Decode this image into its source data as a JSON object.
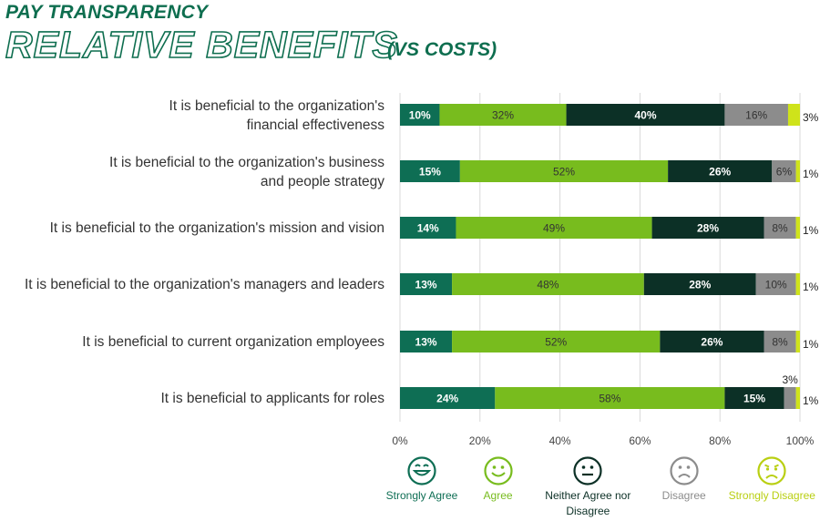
{
  "header": {
    "title_line1": "PAY TRANSPARENCY",
    "title_line2": "RELATIVE BENEFITS",
    "title_suffix": "(VS COSTS)"
  },
  "chart_data": {
    "type": "bar",
    "orientation": "horizontal",
    "stacked": true,
    "xlim": [
      0,
      100
    ],
    "x_ticks": [
      "0%",
      "20%",
      "40%",
      "60%",
      "80%",
      "100%"
    ],
    "grid": true,
    "legend_position": "bottom",
    "categories": [
      "It is beneficial to the organization's financial effectiveness",
      "It is beneficial to the organization's business and people strategy",
      "It is beneficial to the organization's mission and vision",
      "It is beneficial to the organization's managers and leaders",
      "It is beneficial to current organization employees",
      "It is beneficial to applicants for roles"
    ],
    "series": [
      {
        "name": "Strongly Agree",
        "color": "#0e6e54",
        "label_color": "#ffffff",
        "icon": "big-smile-face-icon",
        "values": [
          10,
          15,
          14,
          13,
          13,
          24
        ]
      },
      {
        "name": "Agree",
        "color": "#78bc1e",
        "label_color": "#333333",
        "icon": "smile-face-icon",
        "values": [
          32,
          52,
          49,
          48,
          52,
          58
        ]
      },
      {
        "name": "Neither Agree nor Disagree",
        "color": "#0c3026",
        "label_color": "#ffffff",
        "icon": "neutral-face-icon",
        "values": [
          40,
          26,
          28,
          28,
          26,
          15
        ]
      },
      {
        "name": "Disagree",
        "color": "#8c8c8c",
        "label_color": "#333333",
        "icon": "frown-face-icon",
        "values": [
          16,
          6,
          8,
          10,
          8,
          3
        ]
      },
      {
        "name": "Strongly Disagree",
        "color": "#cfe31a",
        "label_color": "#222222",
        "icon": "upset-face-icon",
        "values": [
          3,
          1,
          1,
          1,
          1,
          1
        ]
      }
    ]
  }
}
